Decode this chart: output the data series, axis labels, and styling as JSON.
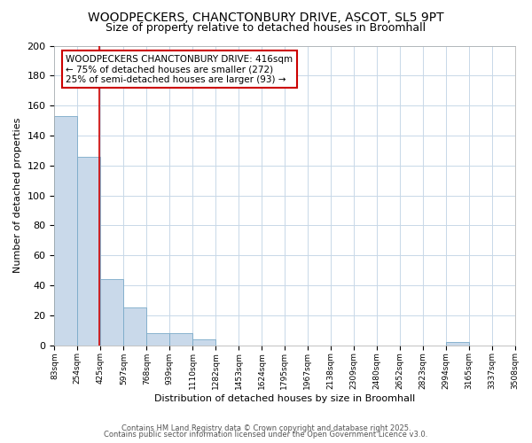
{
  "title1": "WOODPECKERS, CHANCTONBURY DRIVE, ASCOT, SL5 9PT",
  "title2": "Size of property relative to detached houses in Broomhall",
  "xlabel": "Distribution of detached houses by size in Broomhall",
  "ylabel": "Number of detached properties",
  "bin_edges": [
    83,
    254,
    425,
    597,
    768,
    939,
    1110,
    1282,
    1453,
    1624,
    1795,
    1967,
    2138,
    2309,
    2480,
    2652,
    2823,
    2994,
    3165,
    3337,
    3508
  ],
  "bar_heights": [
    153,
    126,
    44,
    25,
    8,
    8,
    4,
    0,
    0,
    0,
    0,
    0,
    0,
    0,
    0,
    0,
    0,
    2,
    0,
    0
  ],
  "bar_color": "#c9d9ea",
  "bar_edge_color": "#7aaac8",
  "grid_color": "#c8d8e8",
  "red_line_x": 416,
  "annotation_line1": "WOODPECKERS CHANCTONBURY DRIVE: 416sqm",
  "annotation_line2": "← 75% of detached houses are smaller (272)",
  "annotation_line3": "25% of semi-detached houses are larger (93) →",
  "annotation_box_color": "#ffffff",
  "annotation_border_color": "#cc0000",
  "footer1": "Contains HM Land Registry data © Crown copyright and database right 2025.",
  "footer2": "Contains public sector information licensed under the Open Government Licence v3.0.",
  "ylim": [
    0,
    200
  ],
  "yticks": [
    0,
    20,
    40,
    60,
    80,
    100,
    120,
    140,
    160,
    180,
    200
  ],
  "background_color": "#ffffff",
  "title1_fontsize": 10,
  "title2_fontsize": 9,
  "xlabel_fontsize": 8,
  "ylabel_fontsize": 8,
  "xtick_fontsize": 6.5,
  "ytick_fontsize": 8,
  "annotation_fontsize": 7.5,
  "footer_fontsize": 6
}
